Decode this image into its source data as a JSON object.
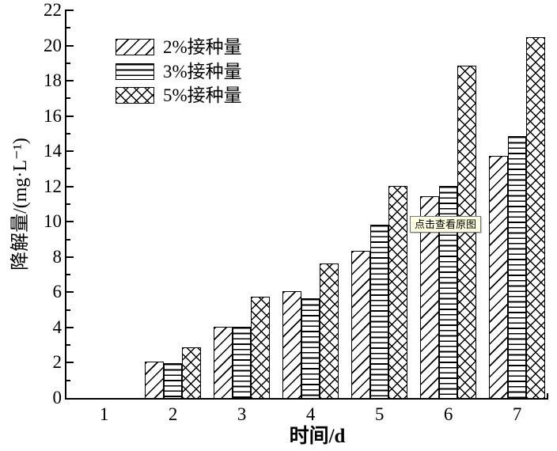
{
  "chart_data": {
    "type": "bar",
    "title": "",
    "xlabel": "时间/d",
    "ylabel": "降解量/(mg·L⁻¹)",
    "categories": [
      "1",
      "2",
      "3",
      "4",
      "5",
      "6",
      "7"
    ],
    "series": [
      {
        "name": "2%接种量",
        "hatch": "diagonal",
        "values": [
          0,
          2.1,
          4.1,
          6.1,
          8.4,
          11.5,
          13.8
        ]
      },
      {
        "name": "3%接种量",
        "hatch": "horizontal",
        "values": [
          0,
          2.0,
          4.1,
          5.7,
          9.9,
          12.1,
          14.9
        ]
      },
      {
        "name": "5%接种量",
        "hatch": "crosshatch",
        "values": [
          0,
          2.9,
          5.8,
          7.7,
          12.1,
          18.9,
          20.5
        ]
      }
    ],
    "ylim": [
      0,
      22
    ],
    "ytick_step": 2,
    "yminor_step": 1,
    "grid": false,
    "legend_position": "upper-left-inside",
    "bar_fill": "#ffffff",
    "line_color": "#000000",
    "background": "#ffffff"
  },
  "tooltip": {
    "text": "点击查看原图",
    "bg": "#ffffe1",
    "border": "#767676",
    "text_color": "#000000"
  }
}
